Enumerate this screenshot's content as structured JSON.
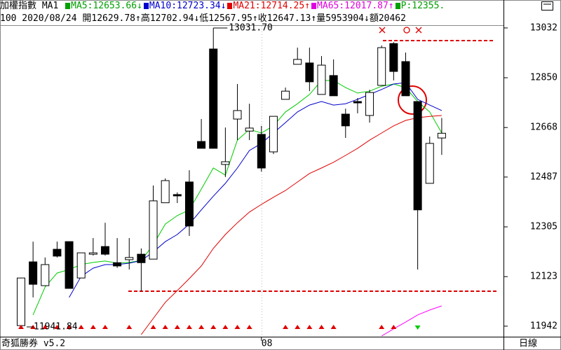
{
  "header": {
    "row1": [
      {
        "text": "加權指數 MA1 ",
        "color": "#000000"
      },
      {
        "text": "MA5:12653.66",
        "color": "#00a000",
        "arrow": "↓",
        "marker": true
      },
      {
        "text": "MA10:12723.34",
        "color": "#0000cc",
        "arrow": "↓",
        "marker": true
      },
      {
        "text": "MA21:12714.25",
        "color": "#e00000",
        "arrow": "↑",
        "marker": true
      },
      {
        "text": "MA65:12017.87",
        "color": "#e000e0",
        "arrow": "↑",
        "marker": true
      },
      {
        "text": "P:12355.",
        "color": "#00a000",
        "marker": true
      }
    ],
    "row2": [
      {
        "text": "100 2020/08/24 開12629.78",
        "color": "#000000",
        "arrow": "↑"
      },
      {
        "text": "高12702.94",
        "color": "#000000",
        "arrow": "↓"
      },
      {
        "text": "低12567.95",
        "color": "#000000",
        "arrow": "↑"
      },
      {
        "text": "收12647.13",
        "color": "#000000",
        "arrow": "↑"
      },
      {
        "text": "量5953904",
        "color": "#000000",
        "arrow": "↓"
      },
      {
        "text": "額20462",
        "color": "#000000"
      }
    ]
  },
  "chart_data": {
    "type": "candlestick",
    "categories": [
      null,
      null,
      null,
      null,
      null,
      null,
      null,
      null,
      null,
      null,
      null,
      null,
      null,
      null,
      null,
      null,
      null,
      null,
      null,
      null,
      "08",
      null,
      null,
      null,
      null,
      null,
      null,
      null,
      null,
      null,
      null,
      null,
      null,
      null,
      null,
      null
    ],
    "open": [
      11944,
      12177,
      12090,
      12223,
      12251,
      12118,
      12205,
      12233,
      12174,
      12185,
      12205,
      12187,
      12393,
      12423,
      12469,
      12617,
      12955,
      12533,
      12699,
      12655,
      12643,
      12579,
      12771,
      12899,
      12904,
      12789,
      12858,
      12717,
      12763,
      12712,
      12822,
      12975,
      12909,
      12763,
      12464,
      12629.78
    ],
    "high": [
      12118,
      12251,
      12193,
      12251,
      12251,
      12210,
      12264,
      12320,
      12264,
      12264,
      12226,
      12456,
      12482,
      12431,
      12512,
      12699,
      13031.7,
      12668,
      12827,
      12755,
      12674,
      12709,
      12814,
      12960,
      12960,
      12929,
      12917,
      12737,
      12776,
      12806,
      12968,
      12980,
      12942,
      12763,
      12635,
      12702.94
    ],
    "low": [
      11941.84,
      12047,
      12090,
      12193,
      12080,
      12118,
      12200,
      12200,
      12155,
      12149,
      12070,
      12187,
      12393,
      12392,
      12272,
      12592,
      12592,
      12487,
      12622,
      12622,
      12507,
      12571,
      12771,
      12899,
      12801,
      12789,
      12784,
      12630,
      12720,
      12686,
      12822,
      12840,
      12784,
      12149,
      12464,
      12567.95
    ],
    "close": [
      12118,
      12095,
      12167,
      12198,
      12080,
      12210,
      12210,
      12205,
      12162,
      12193,
      12174,
      12400,
      12474,
      12418,
      12308,
      12592,
      12592,
      12543,
      12730,
      12666,
      12520,
      12709,
      12801,
      12917,
      12835,
      12896,
      12784,
      12674,
      12758,
      12796,
      12960,
      12873,
      12784,
      12367,
      12610,
      12647.13
    ],
    "up_color": "#ffffff",
    "down_color": "#000000",
    "ma": [
      {
        "color": "#00cc00",
        "values": [
          null,
          11983,
          12085,
          12136,
          12149,
          12167,
          12175,
          12180,
          12172,
          12175,
          12182,
          12239,
          12315,
          12346,
          12367,
          12443,
          12520,
          12494,
          12622,
          12661,
          12648,
          12674,
          12725,
          12755,
          12789,
          12840,
          12840,
          12814,
          12794,
          12801,
          12819,
          12827,
          12814,
          12763,
          12725,
          12648
        ]
      },
      {
        "color": "#0000cc",
        "values": [
          null,
          null,
          null,
          null,
          12047,
          12124,
          12154,
          12167,
          12167,
          12172,
          12182,
          12213,
          12251,
          12277,
          12315,
          12367,
          12417,
          12464,
          12520,
          12584,
          12610,
          12648,
          12686,
          12725,
          12750,
          12763,
          12750,
          12755,
          12771,
          12789,
          12807,
          12827,
          12832,
          12771,
          12750,
          12730
        ]
      },
      {
        "color": "#e00000",
        "values": [
          null,
          null,
          null,
          null,
          null,
          null,
          null,
          null,
          null,
          null,
          11911,
          11970,
          12029,
          12072,
          12116,
          12162,
          12226,
          12277,
          12320,
          12359,
          12387,
          12413,
          12438,
          12469,
          12500,
          12520,
          12541,
          12566,
          12592,
          12622,
          12648,
          12674,
          12694,
          12704,
          12709,
          12712
        ]
      },
      {
        "color": "#ff00ff",
        "values": [
          null,
          null,
          null,
          null,
          null,
          null,
          null,
          null,
          null,
          null,
          null,
          null,
          null,
          null,
          null,
          null,
          null,
          null,
          null,
          null,
          null,
          null,
          null,
          null,
          null,
          null,
          null,
          null,
          null,
          null,
          11906,
          11932,
          11957,
          11983,
          12001,
          12016
        ]
      }
    ],
    "ylim": [
      11906,
      13042
    ],
    "yticks": [
      13032,
      12850,
      12668,
      12487,
      12305,
      12123,
      11942
    ],
    "annotations": [
      {
        "text": "13031.70"
      },
      {
        "text": "11941.84"
      }
    ]
  },
  "footer": {
    "brand": "奇狐勝券 v5.2",
    "period": "日線"
  }
}
